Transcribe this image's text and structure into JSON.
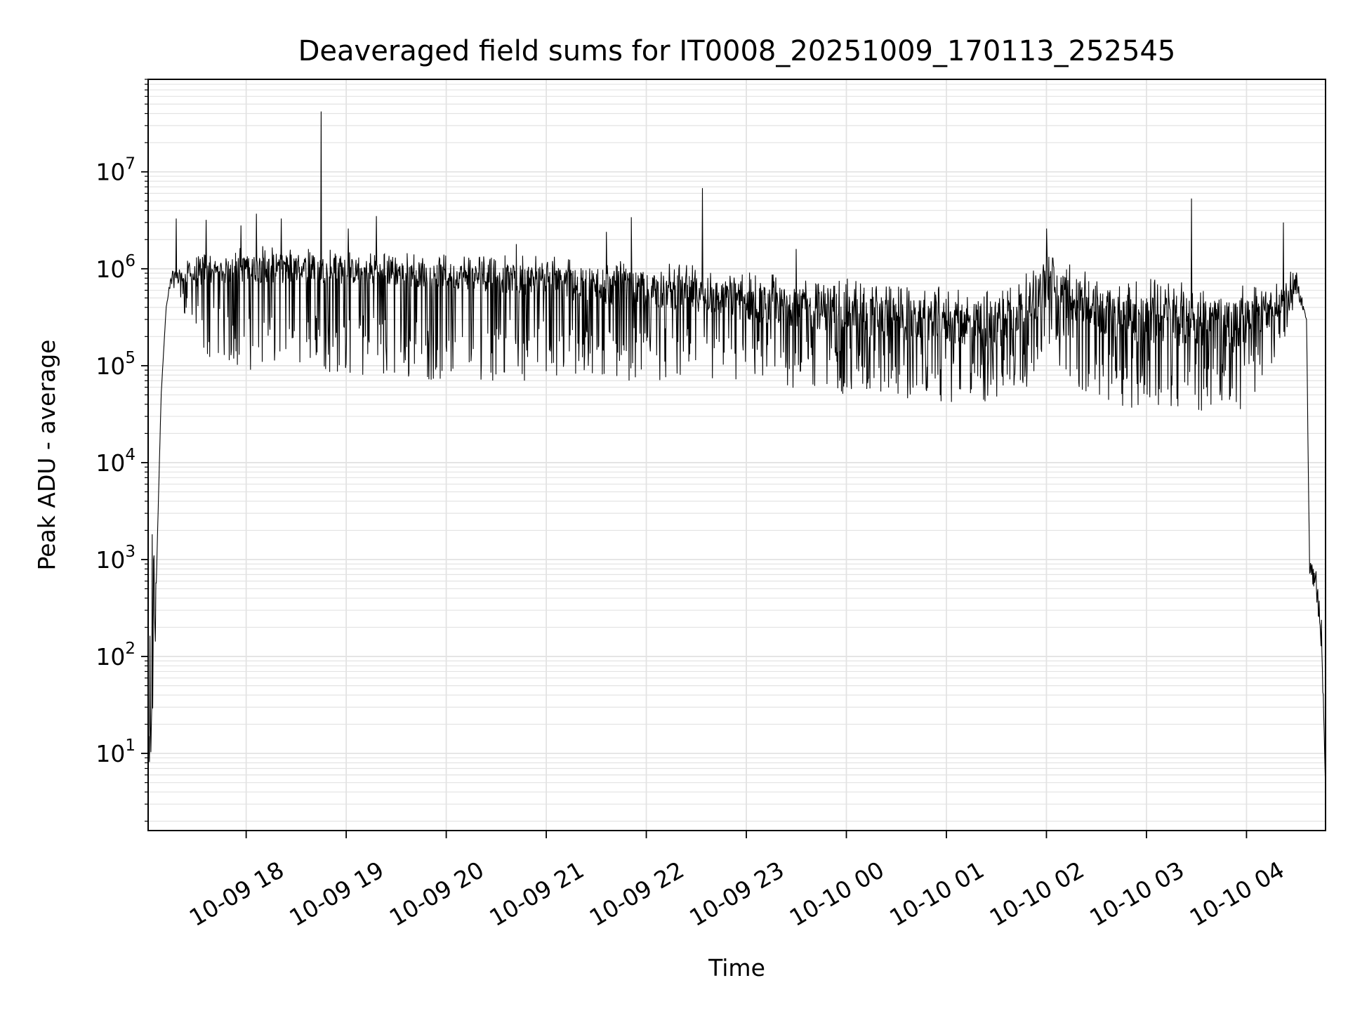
{
  "chart_data": {
    "type": "line",
    "title": "Deaveraged field sums for IT0008_20251009_170113_252545",
    "xlabel": "Time",
    "ylabel": "Peak ADU - average",
    "yscale": "log",
    "ylim": [
      1.6,
      90000000
    ],
    "xlim_hours": [
      17.02,
      28.79
    ],
    "x_ticks": [
      {
        "label": "10-09 18",
        "hour": 18
      },
      {
        "label": "10-09 19",
        "hour": 19
      },
      {
        "label": "10-09 20",
        "hour": 20
      },
      {
        "label": "10-09 21",
        "hour": 21
      },
      {
        "label": "10-09 22",
        "hour": 22
      },
      {
        "label": "10-09 23",
        "hour": 23
      },
      {
        "label": "10-10 00",
        "hour": 24
      },
      {
        "label": "10-10 01",
        "hour": 25
      },
      {
        "label": "10-10 02",
        "hour": 26
      },
      {
        "label": "10-10 03",
        "hour": 27
      },
      {
        "label": "10-10 04",
        "hour": 28
      }
    ],
    "y_ticks": [
      {
        "base": "10",
        "exp": "1",
        "value": 10
      },
      {
        "base": "10",
        "exp": "2",
        "value": 100
      },
      {
        "base": "10",
        "exp": "3",
        "value": 1000
      },
      {
        "base": "10",
        "exp": "4",
        "value": 10000
      },
      {
        "base": "10",
        "exp": "5",
        "value": 100000
      },
      {
        "base": "10",
        "exp": "6",
        "value": 1000000
      },
      {
        "base": "10",
        "exp": "7",
        "value": 10000000
      }
    ],
    "grid": true,
    "line_color": "#000000",
    "grid_color": "#e3e3e3",
    "series": [
      {
        "name": "peak_adu_minus_average",
        "envelope": [
          {
            "hour": 17.02,
            "center": 3,
            "upper": 3,
            "lower": 3
          },
          {
            "hour": 17.05,
            "center": 150,
            "upper": 150000,
            "lower": 4
          },
          {
            "hour": 17.1,
            "center": 500,
            "upper": 500,
            "lower": 200
          },
          {
            "hour": 17.15,
            "center": 50000,
            "upper": 50000,
            "lower": 50000
          },
          {
            "hour": 17.2,
            "center": 400000,
            "upper": 400000,
            "lower": 400000
          },
          {
            "hour": 17.25,
            "center": 800000,
            "upper": 950000,
            "lower": 700000
          },
          {
            "hour": 17.4,
            "center": 800000,
            "upper": 1200000,
            "lower": 300000
          },
          {
            "hour": 17.6,
            "center": 900000,
            "upper": 1500000,
            "lower": 120000
          },
          {
            "hour": 18.0,
            "center": 1000000,
            "upper": 1700000,
            "lower": 90000
          },
          {
            "hour": 18.5,
            "center": 1000000,
            "upper": 1800000,
            "lower": 90000
          },
          {
            "hour": 19.0,
            "center": 950000,
            "upper": 1600000,
            "lower": 80000
          },
          {
            "hour": 19.5,
            "center": 900000,
            "upper": 1500000,
            "lower": 70000
          },
          {
            "hour": 20.0,
            "center": 850000,
            "upper": 1400000,
            "lower": 70000
          },
          {
            "hour": 20.5,
            "center": 800000,
            "upper": 1400000,
            "lower": 70000
          },
          {
            "hour": 21.0,
            "center": 750000,
            "upper": 1400000,
            "lower": 70000
          },
          {
            "hour": 21.5,
            "center": 650000,
            "upper": 1300000,
            "lower": 70000
          },
          {
            "hour": 22.0,
            "center": 600000,
            "upper": 1200000,
            "lower": 70000
          },
          {
            "hour": 22.5,
            "center": 550000,
            "upper": 1100000,
            "lower": 70000
          },
          {
            "hour": 23.0,
            "center": 450000,
            "upper": 950000,
            "lower": 60000
          },
          {
            "hour": 23.5,
            "center": 400000,
            "upper": 850000,
            "lower": 55000
          },
          {
            "hour": 24.0,
            "center": 350000,
            "upper": 800000,
            "lower": 50000
          },
          {
            "hour": 24.5,
            "center": 300000,
            "upper": 700000,
            "lower": 45000
          },
          {
            "hour": 25.0,
            "center": 280000,
            "upper": 650000,
            "lower": 40000
          },
          {
            "hour": 25.5,
            "center": 250000,
            "upper": 600000,
            "lower": 40000
          },
          {
            "hour": 25.8,
            "center": 400000,
            "upper": 900000,
            "lower": 60000
          },
          {
            "hour": 26.0,
            "center": 700000,
            "upper": 2000000,
            "lower": 150000
          },
          {
            "hour": 26.3,
            "center": 450000,
            "upper": 1000000,
            "lower": 50000
          },
          {
            "hour": 26.6,
            "center": 350000,
            "upper": 900000,
            "lower": 40000
          },
          {
            "hour": 27.0,
            "center": 300000,
            "upper": 800000,
            "lower": 35000
          },
          {
            "hour": 27.5,
            "center": 280000,
            "upper": 750000,
            "lower": 35000
          },
          {
            "hour": 27.9,
            "center": 250000,
            "upper": 700000,
            "lower": 30000
          },
          {
            "hour": 28.3,
            "center": 400000,
            "upper": 700000,
            "lower": 100000
          },
          {
            "hour": 28.5,
            "center": 700000,
            "upper": 1100000,
            "lower": 500000
          },
          {
            "hour": 28.6,
            "center": 300000,
            "upper": 300000,
            "lower": 300000
          },
          {
            "hour": 28.63,
            "center": 1000,
            "upper": 1000,
            "lower": 700
          },
          {
            "hour": 28.7,
            "center": 500,
            "upper": 800,
            "lower": 400
          },
          {
            "hour": 28.75,
            "center": 200,
            "upper": 300,
            "lower": 100
          },
          {
            "hour": 28.79,
            "center": 4,
            "upper": 4,
            "lower": 4
          }
        ],
        "spikes": [
          {
            "hour": 17.3,
            "value": 3300000
          },
          {
            "hour": 17.6,
            "value": 3200000
          },
          {
            "hour": 17.95,
            "value": 2800000
          },
          {
            "hour": 18.1,
            "value": 3700000
          },
          {
            "hour": 18.35,
            "value": 3300000
          },
          {
            "hour": 18.75,
            "value": 42000000
          },
          {
            "hour": 19.02,
            "value": 2600000
          },
          {
            "hour": 19.3,
            "value": 3500000
          },
          {
            "hour": 20.7,
            "value": 1800000
          },
          {
            "hour": 21.6,
            "value": 2400000
          },
          {
            "hour": 21.85,
            "value": 3400000
          },
          {
            "hour": 22.56,
            "value": 6800000
          },
          {
            "hour": 23.5,
            "value": 1600000
          },
          {
            "hour": 26.0,
            "value": 2600000
          },
          {
            "hour": 27.45,
            "value": 5300000
          },
          {
            "hour": 28.37,
            "value": 3000000
          }
        ]
      }
    ]
  }
}
